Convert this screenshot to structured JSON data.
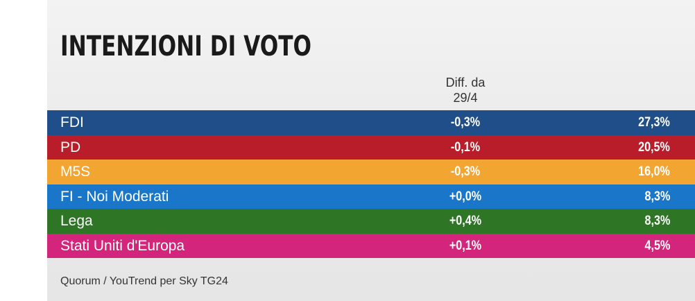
{
  "title": "INTENZIONI DI VOTO",
  "diff_header": {
    "line1": "Diff. da",
    "line2": "29/4"
  },
  "source": "Quorum / YouTrend per Sky TG24",
  "chart_data": {
    "type": "table",
    "columns": [
      "",
      "Diff. da 29/4",
      ""
    ],
    "rows": [
      {
        "party": "FDI",
        "diff": "-0,3%",
        "value": "27,3%",
        "color": "#1f4e89"
      },
      {
        "party": "PD",
        "diff": "-0,1%",
        "value": "20,5%",
        "color": "#b91d2a"
      },
      {
        "party": "M5S",
        "diff": "-0,3%",
        "value": "16,0%",
        "color": "#f2a631"
      },
      {
        "party": "FI - Noi Moderati",
        "diff": "+0,0%",
        "value": "8,3%",
        "color": "#1976c8"
      },
      {
        "party": "Lega",
        "diff": "+0,4%",
        "value": "8,3%",
        "color": "#2e7626"
      },
      {
        "party": "Stati Uniti d'Europa",
        "diff": "+0,1%",
        "value": "4,5%",
        "color": "#d4257d"
      }
    ]
  }
}
